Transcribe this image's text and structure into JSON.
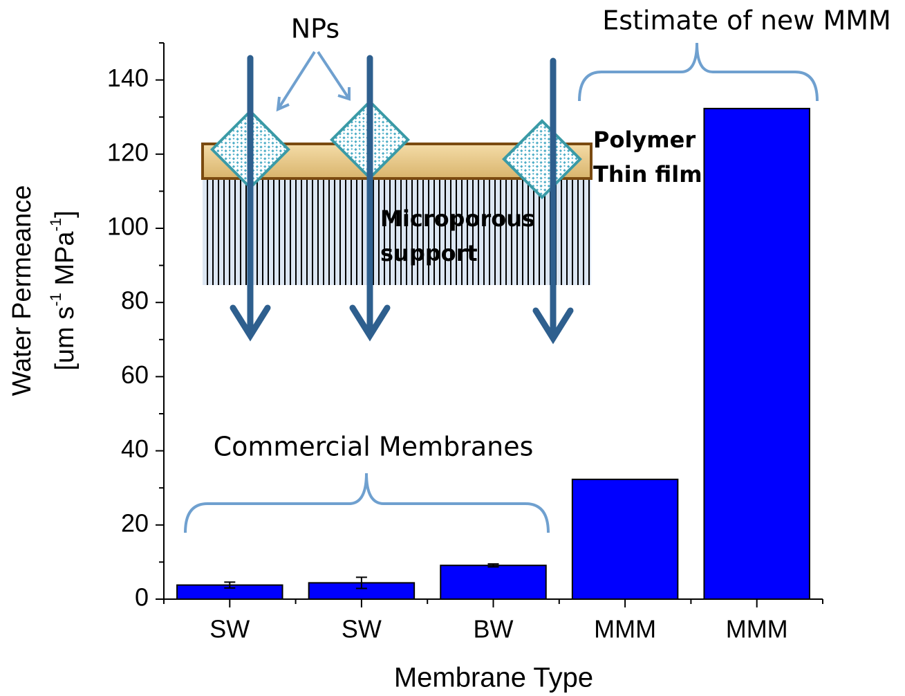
{
  "chart_data": {
    "type": "bar",
    "x_label": "Membrane Type",
    "y_label": "Water Permeance",
    "y_label_units": [
      "[um s",
      "-1",
      " MPa",
      "-1",
      "]"
    ],
    "categories": [
      "SW",
      "SW",
      "BW",
      "MMM",
      "MMM"
    ],
    "values": [
      3.8,
      4.4,
      9.1,
      32.3,
      132.3
    ],
    "errors": [
      0.8,
      1.5,
      0.4,
      null,
      null
    ],
    "color": "#0000ff",
    "ylim": [
      0,
      150
    ],
    "yticks": [
      0,
      20,
      40,
      60,
      80,
      100,
      120,
      140
    ],
    "yminorticks": [
      10,
      30,
      50,
      70,
      90,
      110,
      130,
      150
    ],
    "annotations": {
      "nps": "NPs",
      "estimate": "Estimate of new MMM",
      "commercial": "Commercial Membranes",
      "polymer": [
        "Polymer",
        "Thin film"
      ],
      "support": [
        "Microporous",
        "support"
      ]
    }
  }
}
